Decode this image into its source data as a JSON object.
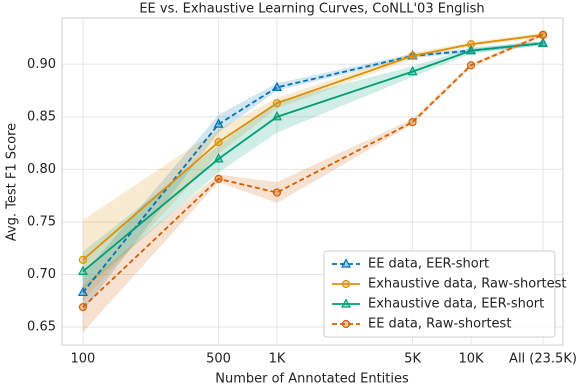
{
  "chart_data": {
    "type": "line",
    "title": "EE vs. Exhaustive Learning Curves, CoNLL'03 English",
    "x_label": "Number of Annotated Entities",
    "y_label": "Avg. Test F1 Score",
    "xscale": "log",
    "x": [
      100,
      500,
      1000,
      5000,
      10000,
      23500
    ],
    "xlim": [
      78,
      29800
    ],
    "xticks": [
      100,
      500,
      {
        "value": 1000,
        "label": "1K"
      },
      {
        "value": 5000,
        "label": "5K"
      },
      {
        "value": 10000,
        "label": "10K"
      },
      {
        "value": 23500,
        "label": "All (23.5K)"
      }
    ],
    "ylim": [
      0.633,
      0.944
    ],
    "yticks": [
      0.65,
      {
        "value": 0.7,
        "label": "0.70"
      },
      0.75,
      {
        "value": 0.8,
        "label": "0.80"
      },
      0.85,
      {
        "value": 0.9,
        "label": "0.90"
      }
    ],
    "grid": true,
    "legend": "lower right",
    "series": [
      {
        "name": "EE data, EER-short",
        "color": "#0173b2",
        "dashed": true,
        "marker": "triangle",
        "values": [
          0.683,
          0.843,
          0.878,
          0.908,
          0.913,
          0.92
        ],
        "lower": [
          0.665,
          0.835,
          0.875,
          0.906,
          0.911,
          0.918
        ],
        "upper": [
          0.7,
          0.852,
          0.882,
          0.91,
          0.915,
          0.922
        ]
      },
      {
        "name": "Exhaustive data, Raw-shortest",
        "color": "#de8f05",
        "dashed": false,
        "marker": "circle",
        "values": [
          0.714,
          0.826,
          0.863,
          0.908,
          0.919,
          0.928
        ],
        "lower": [
          0.675,
          0.815,
          0.858,
          0.905,
          0.917,
          0.926
        ],
        "upper": [
          0.752,
          0.838,
          0.868,
          0.911,
          0.921,
          0.93
        ]
      },
      {
        "name": "Exhaustive data, EER-short",
        "color": "#029e73",
        "dashed": false,
        "marker": "triangle",
        "values": [
          0.703,
          0.81,
          0.85,
          0.893,
          0.913,
          0.92
        ],
        "lower": [
          0.685,
          0.797,
          0.835,
          0.888,
          0.91,
          0.918
        ],
        "upper": [
          0.722,
          0.823,
          0.865,
          0.898,
          0.916,
          0.922
        ]
      },
      {
        "name": "EE data, Raw-shortest",
        "color": "#d55e00",
        "dashed": true,
        "marker": "circle",
        "values": [
          0.669,
          0.791,
          0.778,
          0.845,
          0.899,
          0.928
        ],
        "lower": [
          0.645,
          0.788,
          0.768,
          0.843,
          0.897,
          0.926
        ],
        "upper": [
          0.69,
          0.795,
          0.788,
          0.848,
          0.901,
          0.93
        ]
      }
    ]
  }
}
